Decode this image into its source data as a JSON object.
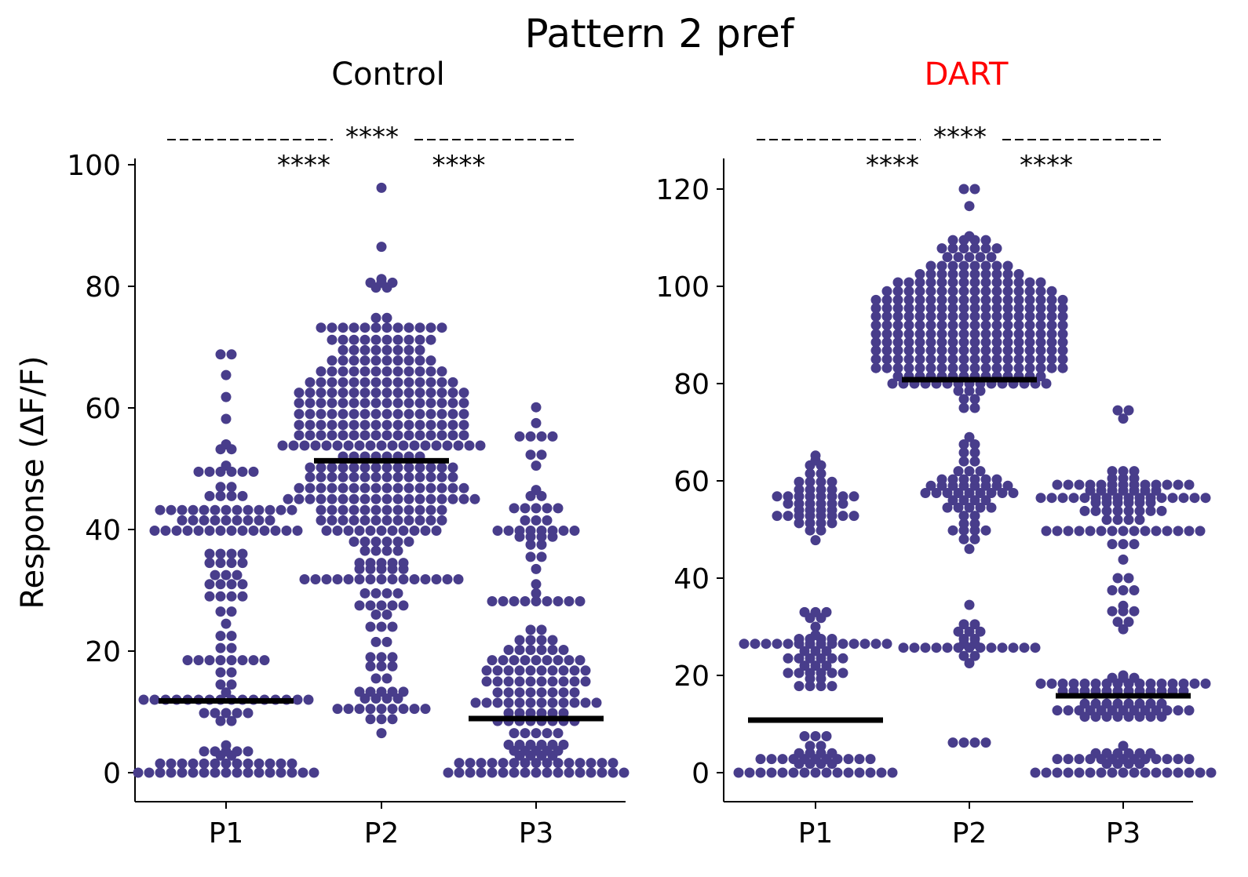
{
  "title": "Pattern 2 pref",
  "ylabel": "Response (ΔF/F)",
  "colors": {
    "dots": "#483d8b",
    "median": "#000000",
    "dart_title": "#ff0000",
    "control_title": "#000000"
  },
  "chart_data": [
    {
      "type": "swarm",
      "title": "Control",
      "categories": [
        "P1",
        "P2",
        "P3"
      ],
      "ylim": [
        -5,
        101
      ],
      "yticks": [
        0,
        20,
        40,
        60,
        80,
        100
      ],
      "medians": [
        11.8,
        51.3,
        8.9
      ],
      "significance": {
        "across": "****",
        "p1_p2": "****",
        "p2_p3": "****"
      },
      "groups": [
        [
          {
            "y": 0,
            "n": 17
          },
          {
            "y": 1.5,
            "n": 13
          },
          {
            "y": 2.8,
            "n": 2
          },
          {
            "y": 3.5,
            "n": 5
          },
          {
            "y": 4.5,
            "n": 1
          },
          {
            "y": 8.5,
            "n": 2
          },
          {
            "y": 9.8,
            "n": 5
          },
          {
            "y": 12,
            "n": 16
          },
          {
            "y": 13.2,
            "n": 1
          },
          {
            "y": 14.5,
            "n": 2
          },
          {
            "y": 16.5,
            "n": 2
          },
          {
            "y": 18.5,
            "n": 8
          },
          {
            "y": 20.5,
            "n": 2
          },
          {
            "y": 22.5,
            "n": 2
          },
          {
            "y": 24.5,
            "n": 1
          },
          {
            "y": 26.5,
            "n": 2
          },
          {
            "y": 29,
            "n": 4
          },
          {
            "y": 31,
            "n": 4
          },
          {
            "y": 32.5,
            "n": 3
          },
          {
            "y": 34.5,
            "n": 4
          },
          {
            "y": 36,
            "n": 4
          },
          {
            "y": 39.8,
            "n": 14
          },
          {
            "y": 41.5,
            "n": 9
          },
          {
            "y": 43.2,
            "n": 13
          },
          {
            "y": 45.5,
            "n": 4
          },
          {
            "y": 47,
            "n": 2
          },
          {
            "y": 49.5,
            "n": 6
          },
          {
            "y": 50.5,
            "n": 1
          },
          {
            "y": 53.2,
            "n": 2
          },
          {
            "y": 54,
            "n": 1
          },
          {
            "y": 58.2,
            "n": 1
          },
          {
            "y": 61.8,
            "n": 1
          },
          {
            "y": 65.4,
            "n": 1
          },
          {
            "y": 68.8,
            "n": 2
          }
        ],
        [
          {
            "y": 6.5,
            "n": 1
          },
          {
            "y": 8.8,
            "n": 3
          },
          {
            "y": 10.5,
            "n": 9
          },
          {
            "y": 12.2,
            "n": 4
          },
          {
            "y": 13.3,
            "n": 5
          },
          {
            "y": 15.5,
            "n": 2
          },
          {
            "y": 17.5,
            "n": 3
          },
          {
            "y": 19,
            "n": 3
          },
          {
            "y": 21.5,
            "n": 2
          },
          {
            "y": 24,
            "n": 3
          },
          {
            "y": 26,
            "n": 2
          },
          {
            "y": 27.5,
            "n": 5
          },
          {
            "y": 29.5,
            "n": 4
          },
          {
            "y": 31.8,
            "n": 15
          },
          {
            "y": 33.5,
            "n": 5
          },
          {
            "y": 34.5,
            "n": 5
          },
          {
            "y": 36.5,
            "n": 4
          },
          {
            "y": 38,
            "n": 6
          },
          {
            "y": 39.8,
            "n": 11
          },
          {
            "y": 41.5,
            "n": 12
          },
          {
            "y": 43.2,
            "n": 12
          },
          {
            "y": 45,
            "n": 18
          },
          {
            "y": 46.8,
            "n": 16
          },
          {
            "y": 48.6,
            "n": 14
          },
          {
            "y": 50.2,
            "n": 14
          },
          {
            "y": 52,
            "n": 8
          },
          {
            "y": 53.8,
            "n": 19
          },
          {
            "y": 55.5,
            "n": 16
          },
          {
            "y": 57.2,
            "n": 16
          },
          {
            "y": 59,
            "n": 16
          },
          {
            "y": 60.8,
            "n": 16
          },
          {
            "y": 62.5,
            "n": 16
          },
          {
            "y": 64.2,
            "n": 14
          },
          {
            "y": 66,
            "n": 12
          },
          {
            "y": 67.8,
            "n": 10
          },
          {
            "y": 69.5,
            "n": 8
          },
          {
            "y": 71.2,
            "n": 10
          },
          {
            "y": 73.2,
            "n": 12
          },
          {
            "y": 74.8,
            "n": 2
          },
          {
            "y": 79.8,
            "n": 2
          },
          {
            "y": 80.6,
            "n": 3
          },
          {
            "y": 81.2,
            "n": 1
          },
          {
            "y": 86.5,
            "n": 1
          },
          {
            "y": 96.2,
            "n": 1
          }
        ],
        [
          {
            "y": 0,
            "n": 17
          },
          {
            "y": 1.6,
            "n": 15
          },
          {
            "y": 2.8,
            "n": 4
          },
          {
            "y": 3.6,
            "n": 5
          },
          {
            "y": 4.6,
            "n": 6
          },
          {
            "y": 6.5,
            "n": 5
          },
          {
            "y": 8.5,
            "n": 8
          },
          {
            "y": 9.8,
            "n": 6
          },
          {
            "y": 11.5,
            "n": 12
          },
          {
            "y": 13.2,
            "n": 8
          },
          {
            "y": 15,
            "n": 10
          },
          {
            "y": 16.8,
            "n": 10
          },
          {
            "y": 18.5,
            "n": 9
          },
          {
            "y": 20.2,
            "n": 6
          },
          {
            "y": 21.8,
            "n": 4
          },
          {
            "y": 23.5,
            "n": 2
          },
          {
            "y": 28.2,
            "n": 9
          },
          {
            "y": 29.5,
            "n": 1
          },
          {
            "y": 31,
            "n": 1
          },
          {
            "y": 33.5,
            "n": 1
          },
          {
            "y": 35.5,
            "n": 2
          },
          {
            "y": 37.5,
            "n": 2
          },
          {
            "y": 38.8,
            "n": 4
          },
          {
            "y": 39.8,
            "n": 8
          },
          {
            "y": 41.5,
            "n": 3
          },
          {
            "y": 43.5,
            "n": 5
          },
          {
            "y": 45.5,
            "n": 2
          },
          {
            "y": 46.5,
            "n": 1
          },
          {
            "y": 50.5,
            "n": 1
          },
          {
            "y": 52.3,
            "n": 2
          },
          {
            "y": 55.3,
            "n": 4
          },
          {
            "y": 57.5,
            "n": 1
          },
          {
            "y": 60.1,
            "n": 1
          }
        ]
      ]
    },
    {
      "type": "swarm",
      "title": "DART",
      "categories": [
        "P1",
        "P2",
        "P3"
      ],
      "ylim": [
        -6,
        126
      ],
      "yticks": [
        0,
        20,
        40,
        60,
        80,
        100,
        120
      ],
      "medians": [
        10.8,
        80.8,
        15.8
      ],
      "significance": {
        "across": "****",
        "p1_p2": "****",
        "p2_p3": "****"
      },
      "groups": [
        [
          {
            "y": 0,
            "n": 15
          },
          {
            "y": 1.8,
            "n": 4
          },
          {
            "y": 2.8,
            "n": 11
          },
          {
            "y": 4,
            "n": 4
          },
          {
            "y": 5.5,
            "n": 2
          },
          {
            "y": 7.5,
            "n": 3
          },
          {
            "y": 17.8,
            "n": 4
          },
          {
            "y": 19.3,
            "n": 2
          },
          {
            "y": 20.5,
            "n": 6
          },
          {
            "y": 22,
            "n": 3
          },
          {
            "y": 23.5,
            "n": 6
          },
          {
            "y": 25,
            "n": 3
          },
          {
            "y": 26.5,
            "n": 14
          },
          {
            "y": 27.5,
            "n": 4
          },
          {
            "y": 28.3,
            "n": 1
          },
          {
            "y": 30,
            "n": 1
          },
          {
            "y": 31.8,
            "n": 2
          },
          {
            "y": 33,
            "n": 3
          },
          {
            "y": 47.8,
            "n": 1
          },
          {
            "y": 49.8,
            "n": 2
          },
          {
            "y": 51.3,
            "n": 4
          },
          {
            "y": 52.8,
            "n": 8
          },
          {
            "y": 54,
            "n": 4
          },
          {
            "y": 55.3,
            "n": 6
          },
          {
            "y": 56.8,
            "n": 8
          },
          {
            "y": 58.2,
            "n": 4
          },
          {
            "y": 59.8,
            "n": 4
          },
          {
            "y": 61.5,
            "n": 2
          },
          {
            "y": 63.2,
            "n": 2
          },
          {
            "y": 64.2,
            "n": 1
          },
          {
            "y": 65.2,
            "n": 1
          }
        ],
        [
          {
            "y": 6.2,
            "n": 4
          },
          {
            "y": 22.5,
            "n": 1
          },
          {
            "y": 24,
            "n": 2
          },
          {
            "y": 25.7,
            "n": 13
          },
          {
            "y": 26.5,
            "n": 2
          },
          {
            "y": 27.5,
            "n": 2
          },
          {
            "y": 29,
            "n": 3
          },
          {
            "y": 30.5,
            "n": 2
          },
          {
            "y": 34.5,
            "n": 1
          },
          {
            "y": 46,
            "n": 1
          },
          {
            "y": 48,
            "n": 2
          },
          {
            "y": 49.8,
            "n": 4
          },
          {
            "y": 51.2,
            "n": 2
          },
          {
            "y": 52.8,
            "n": 2
          },
          {
            "y": 54.5,
            "n": 5
          },
          {
            "y": 56,
            "n": 4
          },
          {
            "y": 57.5,
            "n": 9
          },
          {
            "y": 59,
            "n": 8
          },
          {
            "y": 60.3,
            "n": 6
          },
          {
            "y": 62,
            "n": 3
          },
          {
            "y": 64,
            "n": 2
          },
          {
            "y": 65.8,
            "n": 2
          },
          {
            "y": 67.5,
            "n": 2
          },
          {
            "y": 69,
            "n": 1
          },
          {
            "y": 75,
            "n": 2
          },
          {
            "y": 76.8,
            "n": 2
          },
          {
            "y": 78.5,
            "n": 3
          },
          {
            "y": 80,
            "n": 15
          },
          {
            "y": 81.5,
            "n": 14
          },
          {
            "y": 83.2,
            "n": 18
          },
          {
            "y": 85,
            "n": 18
          },
          {
            "y": 86.8,
            "n": 18
          },
          {
            "y": 88.5,
            "n": 18
          },
          {
            "y": 90.2,
            "n": 18
          },
          {
            "y": 92,
            "n": 18
          },
          {
            "y": 93.8,
            "n": 18
          },
          {
            "y": 95.5,
            "n": 18
          },
          {
            "y": 97.2,
            "n": 18
          },
          {
            "y": 99,
            "n": 16
          },
          {
            "y": 100.8,
            "n": 14
          },
          {
            "y": 102.5,
            "n": 10
          },
          {
            "y": 104.2,
            "n": 8
          },
          {
            "y": 106,
            "n": 5
          },
          {
            "y": 107.8,
            "n": 6
          },
          {
            "y": 109.5,
            "n": 4
          },
          {
            "y": 110.3,
            "n": 1
          },
          {
            "y": 116.5,
            "n": 1
          },
          {
            "y": 120,
            "n": 2
          }
        ],
        [
          {
            "y": 0,
            "n": 17
          },
          {
            "y": 1.8,
            "n": 4
          },
          {
            "y": 2.8,
            "n": 13
          },
          {
            "y": 4,
            "n": 6
          },
          {
            "y": 5.5,
            "n": 1
          },
          {
            "y": 11.5,
            "n": 8
          },
          {
            "y": 12.8,
            "n": 13
          },
          {
            "y": 14.2,
            "n": 8
          },
          {
            "y": 16.8,
            "n": 12
          },
          {
            "y": 18.3,
            "n": 16
          },
          {
            "y": 19.5,
            "n": 3
          },
          {
            "y": 20,
            "n": 1
          },
          {
            "y": 29.5,
            "n": 1
          },
          {
            "y": 31,
            "n": 2
          },
          {
            "y": 33.2,
            "n": 3
          },
          {
            "y": 34.3,
            "n": 1
          },
          {
            "y": 37.5,
            "n": 3
          },
          {
            "y": 40,
            "n": 2
          },
          {
            "y": 43.8,
            "n": 1
          },
          {
            "y": 47,
            "n": 3
          },
          {
            "y": 49.7,
            "n": 15
          },
          {
            "y": 52,
            "n": 4
          },
          {
            "y": 53.8,
            "n": 8
          },
          {
            "y": 55.5,
            "n": 6
          },
          {
            "y": 56.5,
            "n": 16
          },
          {
            "y": 58,
            "n": 7
          },
          {
            "y": 59.2,
            "n": 13
          },
          {
            "y": 60.5,
            "n": 3
          },
          {
            "y": 62,
            "n": 3
          },
          {
            "y": 72.8,
            "n": 1
          },
          {
            "y": 74.5,
            "n": 2
          }
        ]
      ]
    }
  ]
}
